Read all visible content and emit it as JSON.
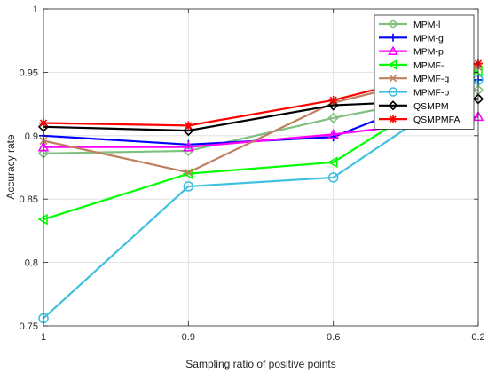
{
  "chart_data": {
    "type": "line",
    "title": "",
    "xlabel": "Sampling ratio of positive points",
    "ylabel": "Accuracy rate",
    "categories": [
      "1",
      "0.9",
      "0.6",
      "0.2"
    ],
    "ylim": [
      0.75,
      1
    ],
    "yticks": [
      "0.75",
      "0.8",
      "0.85",
      "0.9",
      "0.95",
      "1"
    ],
    "grid": true,
    "legend_position": "top-right",
    "series": [
      {
        "name": "MPM-l",
        "color": "#7fbf7f",
        "marker": "diamond",
        "values": [
          0.886,
          0.888,
          0.914,
          0.936
        ]
      },
      {
        "name": "MPM-g",
        "color": "#0000ff",
        "marker": "plus",
        "values": [
          0.9,
          0.893,
          0.899,
          0.944
        ]
      },
      {
        "name": "MPM-p",
        "color": "#ff00ff",
        "marker": "triangle-up",
        "values": [
          0.891,
          0.891,
          0.901,
          0.915
        ]
      },
      {
        "name": "MPMF-l",
        "color": "#00ff00",
        "marker": "triangle-left",
        "values": [
          0.834,
          0.87,
          0.879,
          0.951
        ]
      },
      {
        "name": "MPMF-g",
        "color": "#bf7f5f",
        "marker": "x",
        "values": [
          0.896,
          0.871,
          0.926,
          0.954
        ]
      },
      {
        "name": "MPMF-p",
        "color": "#40c0e0",
        "marker": "circle",
        "values": [
          0.756,
          0.86,
          0.867,
          0.944
        ]
      },
      {
        "name": "QSMPM",
        "color": "#000000",
        "marker": "diamond",
        "values": [
          0.907,
          0.904,
          0.924,
          0.929
        ]
      },
      {
        "name": "QSMPMFA",
        "color": "#ff0000",
        "marker": "asterisk",
        "values": [
          0.91,
          0.908,
          0.928,
          0.957
        ]
      }
    ]
  }
}
